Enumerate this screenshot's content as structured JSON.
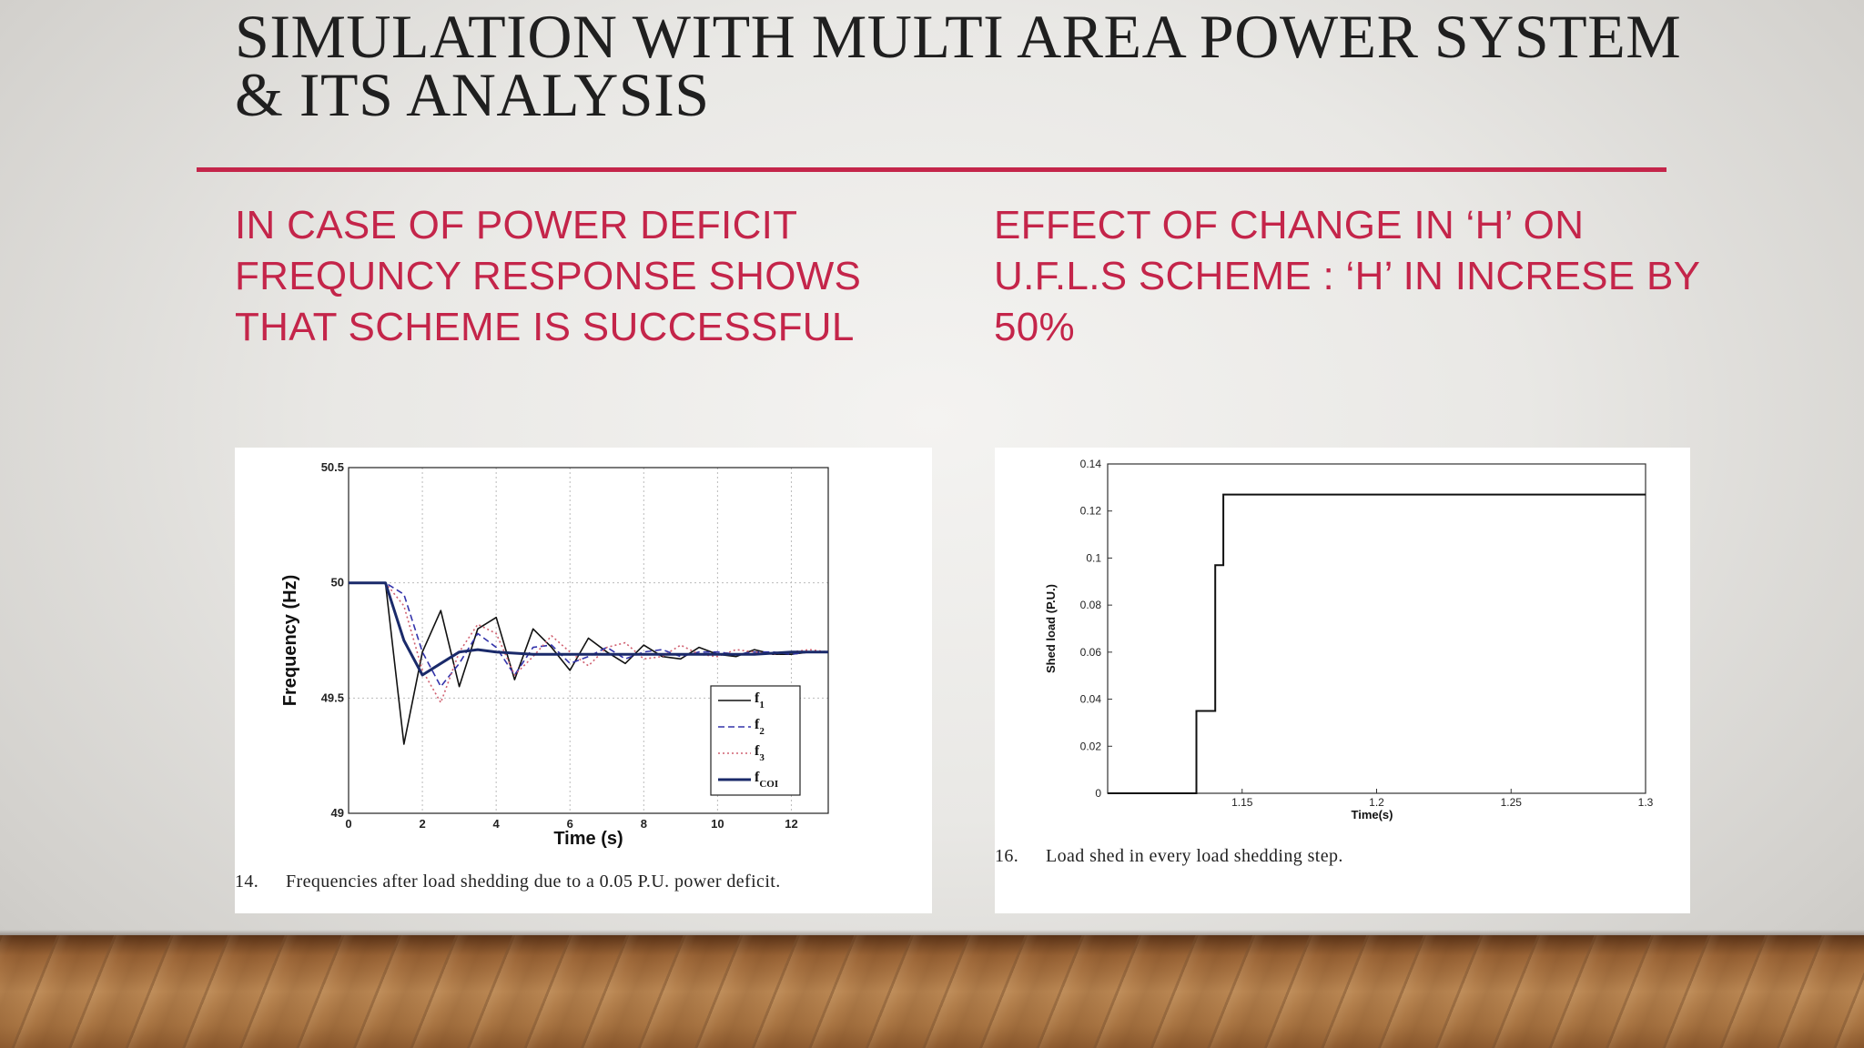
{
  "slide": {
    "title_line1": "SIMULATION WITH MULTI AREA POWER SYSTEM",
    "title_line2": "& ITS ANALYSIS",
    "left_heading": [
      "IN CASE OF POWER DEFICIT",
      "FREQUNCY RESPONSE SHOWS",
      "THAT SCHEME IS SUCCESSFUL"
    ],
    "right_heading": [
      "EFFECT OF CHANGE IN ‘H’ ON",
      "U.F.L.S SCHEME : ‘H’ IN INCRESE BY",
      "50%"
    ],
    "colors": {
      "accent": "#c4254a",
      "title": "#1f1f1f"
    }
  },
  "left_figure": {
    "caption_number": "14.",
    "caption_text": "Frequencies after load shedding due to a 0.05 P.U. power deficit."
  },
  "right_figure": {
    "caption_number": "16.",
    "caption_text": "Load shed in every load shedding step."
  },
  "chart_data": [
    {
      "type": "line",
      "xlabel": "Time (s)",
      "ylabel": "Frequency (Hz)",
      "xlim": [
        0,
        13
      ],
      "ylim": [
        49,
        50.5
      ],
      "x_ticks": [
        "0",
        "2",
        "4",
        "6",
        "8",
        "10",
        "12"
      ],
      "y_ticks": [
        "49",
        "49.5",
        "50",
        "50.5"
      ],
      "grid": true,
      "legend_placement": "bottom-right",
      "legend": [
        {
          "base": "f",
          "sub": "1"
        },
        {
          "base": "f",
          "sub": "2"
        },
        {
          "base": "f",
          "sub": "3"
        },
        {
          "base": "f",
          "sub": "COI"
        }
      ],
      "series": [
        {
          "name": "f1",
          "color": "#111111",
          "style": "solid",
          "x": [
            0,
            1,
            1.5,
            2,
            2.5,
            3,
            3.5,
            4,
            4.5,
            5,
            5.5,
            6,
            6.5,
            7,
            7.5,
            8,
            8.5,
            9,
            9.5,
            10,
            10.5,
            11,
            11.5,
            12,
            12.5,
            13
          ],
          "y": [
            50,
            50,
            49.3,
            49.7,
            49.88,
            49.55,
            49.8,
            49.85,
            49.58,
            49.8,
            49.72,
            49.62,
            49.76,
            49.7,
            49.65,
            49.73,
            49.68,
            49.67,
            49.72,
            49.69,
            49.68,
            49.71,
            49.69,
            49.69,
            49.7,
            49.7
          ]
        },
        {
          "name": "f2",
          "color": "#3333aa",
          "style": "dashed",
          "x": [
            0,
            1,
            1.5,
            2,
            2.5,
            3,
            3.5,
            4,
            4.5,
            5,
            5.5,
            6,
            6.5,
            7,
            7.5,
            8,
            8.5,
            9,
            9.5,
            10,
            10.5,
            11,
            11.5,
            12,
            12.5,
            13
          ],
          "y": [
            50,
            50,
            49.95,
            49.7,
            49.55,
            49.65,
            49.78,
            49.72,
            49.6,
            49.72,
            49.73,
            49.65,
            49.68,
            49.72,
            49.67,
            49.7,
            49.71,
            49.68,
            49.7,
            49.7,
            49.69,
            49.7,
            49.7,
            49.69,
            49.7,
            49.7
          ]
        },
        {
          "name": "f3",
          "color": "#d06070",
          "style": "dotted",
          "x": [
            0,
            1,
            1.5,
            2,
            2.5,
            3,
            3.5,
            4,
            4.5,
            5,
            5.5,
            6,
            6.5,
            7,
            7.5,
            8,
            8.5,
            9,
            9.5,
            10,
            10.5,
            11,
            11.5,
            12,
            12.5,
            13
          ],
          "y": [
            50,
            50,
            49.9,
            49.62,
            49.48,
            49.7,
            49.82,
            49.78,
            49.6,
            49.68,
            49.77,
            49.7,
            49.64,
            49.72,
            49.74,
            49.67,
            49.68,
            49.73,
            49.69,
            49.68,
            49.71,
            49.7,
            49.69,
            49.7,
            49.71,
            49.7
          ]
        },
        {
          "name": "fCOI",
          "color": "#1a2a6a",
          "style": "solid",
          "x": [
            0,
            1,
            1.5,
            2,
            2.5,
            3,
            3.5,
            4,
            5,
            6,
            7,
            8,
            9,
            10,
            11,
            12,
            13
          ],
          "y": [
            50,
            50,
            49.75,
            49.6,
            49.65,
            49.7,
            49.71,
            49.7,
            49.69,
            49.69,
            49.69,
            49.69,
            49.69,
            49.69,
            49.69,
            49.7,
            49.7
          ]
        }
      ]
    },
    {
      "type": "line",
      "xlabel": "Time(s)",
      "ylabel": "Shed load (P.U.)",
      "xlim": [
        1.1,
        1.3
      ],
      "ylim": [
        0,
        0.14
      ],
      "x_ticks": [
        "1.15",
        "1.2",
        "1.25",
        "1.3"
      ],
      "y_ticks": [
        "0",
        "0.02",
        "0.04",
        "0.06",
        "0.08",
        "0.1",
        "0.12",
        "0.14"
      ],
      "grid": false,
      "series": [
        {
          "color": "#111111",
          "style": "step",
          "x": [
            1.1,
            1.133,
            1.133,
            1.14,
            1.14,
            1.143,
            1.143,
            1.3
          ],
          "y": [
            0,
            0,
            0.035,
            0.035,
            0.097,
            0.097,
            0.127,
            0.127
          ]
        }
      ]
    }
  ]
}
